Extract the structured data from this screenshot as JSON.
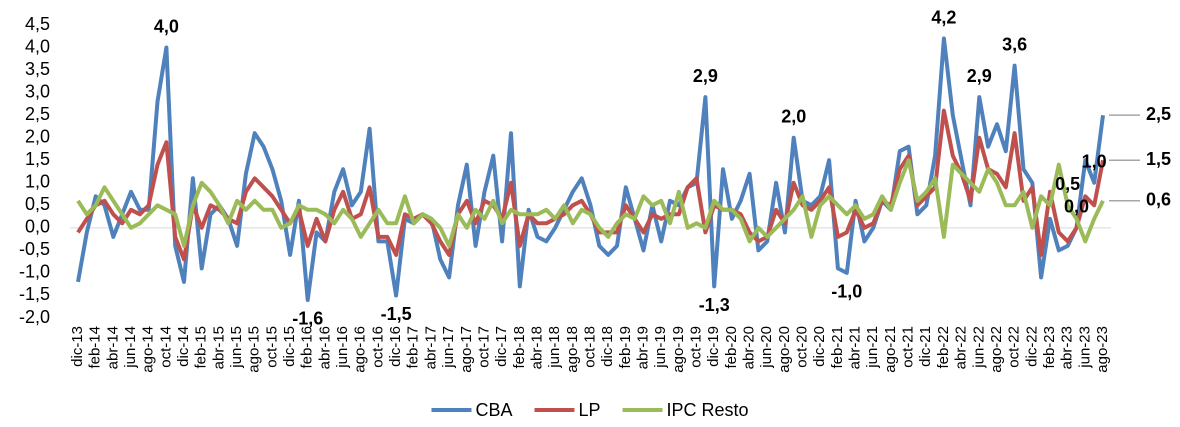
{
  "chart_data": {
    "type": "line",
    "categories": [
      "dic-13",
      null,
      "feb-14",
      null,
      "abr-14",
      null,
      "jun-14",
      null,
      "ago-14",
      null,
      "oct-14",
      null,
      "dic-14",
      null,
      "feb-15",
      null,
      "abr-15",
      null,
      "jun-15",
      null,
      "ago-15",
      null,
      "oct-15",
      null,
      "dic-15",
      null,
      "feb-16",
      null,
      "abr-16",
      null,
      "jun-16",
      null,
      "ago-16",
      null,
      "oct-16",
      null,
      "dic-16",
      null,
      "feb-17",
      null,
      "abr-17",
      null,
      "jun-17",
      null,
      "ago-17",
      null,
      "oct-17",
      null,
      "dic-17",
      null,
      "feb-18",
      null,
      "abr-18",
      null,
      "jun-18",
      null,
      "ago-18",
      null,
      "oct-18",
      null,
      "dic-18",
      null,
      "feb-19",
      null,
      "abr-19",
      null,
      "jun-19",
      null,
      "ago-19",
      null,
      "oct-19",
      null,
      "dic-19",
      null,
      "feb-20",
      null,
      "abr-20",
      null,
      "jun-20",
      null,
      "ago-20",
      null,
      "oct-20",
      null,
      "dic-20",
      null,
      "feb-21",
      null,
      "abr-21",
      null,
      "jun-21",
      null,
      "ago-21",
      null,
      "oct-21",
      null,
      "dic-21",
      null,
      "feb-22",
      null,
      "abr-22",
      null,
      "jun-22",
      null,
      "ago-22",
      null,
      "oct-22",
      null,
      "dic-22",
      null,
      "feb-23",
      null,
      "abr-23",
      null,
      "jun-23",
      null,
      "ago-23"
    ],
    "series": [
      {
        "name": "CBA",
        "color": "#4f81bd",
        "values": [
          -1.2,
          -0.1,
          0.7,
          0.5,
          -0.2,
          0.3,
          0.8,
          0.4,
          0.4,
          2.8,
          4.0,
          -0.4,
          -1.2,
          1.1,
          -0.9,
          0.3,
          0.5,
          0.2,
          -0.4,
          1.2,
          2.1,
          1.8,
          1.3,
          0.6,
          -0.6,
          0.6,
          -1.6,
          -0.1,
          -0.3,
          0.8,
          1.3,
          0.5,
          0.8,
          2.2,
          -0.3,
          -0.3,
          -1.5,
          0.2,
          0.1,
          0.3,
          0.2,
          -0.7,
          -1.1,
          0.5,
          1.4,
          -0.4,
          0.8,
          1.6,
          -0.3,
          2.1,
          -1.3,
          0.4,
          -0.2,
          -0.3,
          0.0,
          0.4,
          0.8,
          1.1,
          0.5,
          -0.4,
          -0.6,
          -0.4,
          0.9,
          0.2,
          -0.5,
          0.5,
          -0.3,
          0.6,
          0.5,
          0.9,
          1.0,
          2.9,
          -1.3,
          1.3,
          0.2,
          0.6,
          1.2,
          -0.5,
          -0.3,
          1.0,
          -0.1,
          2.0,
          0.6,
          0.5,
          0.7,
          1.5,
          -0.9,
          -1.0,
          0.6,
          -0.3,
          0.0,
          0.6,
          0.4,
          1.7,
          1.8,
          0.3,
          0.5,
          1.6,
          4.2,
          2.5,
          1.5,
          0.5,
          2.9,
          1.8,
          2.3,
          1.7,
          3.6,
          1.3,
          1.0,
          -1.1,
          0.2,
          -0.5,
          -0.4,
          0.0,
          1.5,
          1.0,
          2.5
        ],
        "value_labels": [
          null,
          null,
          null,
          null,
          null,
          null,
          null,
          null,
          null,
          null,
          "4,0",
          null,
          null,
          null,
          null,
          null,
          null,
          null,
          null,
          null,
          null,
          null,
          null,
          null,
          null,
          null,
          "-1,6",
          null,
          null,
          null,
          null,
          null,
          null,
          null,
          null,
          null,
          "-1,5",
          null,
          null,
          null,
          null,
          null,
          null,
          null,
          null,
          null,
          null,
          null,
          null,
          null,
          null,
          null,
          null,
          null,
          null,
          null,
          null,
          null,
          null,
          null,
          null,
          null,
          null,
          null,
          null,
          null,
          null,
          null,
          null,
          null,
          null,
          "2,9",
          "-1,3",
          null,
          null,
          null,
          null,
          null,
          null,
          null,
          null,
          "2,0",
          null,
          null,
          null,
          null,
          null,
          "-1,0",
          null,
          null,
          null,
          null,
          null,
          null,
          null,
          null,
          null,
          null,
          "4,2",
          null,
          null,
          null,
          "2,9",
          null,
          null,
          null,
          "3,6",
          null,
          null,
          null,
          null,
          null,
          null,
          null,
          null,
          "1,0",
          "2,5"
        ]
      },
      {
        "name": "LP",
        "color": "#c0504d",
        "values": [
          -0.1,
          0.2,
          0.5,
          0.6,
          0.3,
          0.1,
          0.4,
          0.3,
          0.5,
          1.4,
          1.9,
          -0.2,
          -0.7,
          0.5,
          0.0,
          0.5,
          0.4,
          0.2,
          0.1,
          0.8,
          1.1,
          0.9,
          0.7,
          0.4,
          0.1,
          0.4,
          -0.4,
          0.2,
          -0.3,
          0.4,
          0.8,
          0.2,
          0.3,
          0.9,
          -0.2,
          -0.2,
          -0.6,
          0.3,
          0.2,
          0.3,
          0.1,
          -0.3,
          -0.6,
          0.3,
          0.6,
          0.1,
          0.6,
          0.5,
          0.2,
          1.0,
          -0.4,
          0.3,
          0.1,
          0.1,
          0.2,
          0.3,
          0.5,
          0.6,
          0.3,
          -0.1,
          -0.1,
          -0.1,
          0.5,
          0.2,
          -0.1,
          0.3,
          0.2,
          0.3,
          0.3,
          0.9,
          1.1,
          -0.1,
          0.5,
          0.4,
          0.4,
          0.3,
          -0.1,
          -0.3,
          -0.2,
          0.4,
          0.1,
          1.0,
          0.5,
          0.4,
          0.6,
          0.9,
          -0.2,
          -0.1,
          0.4,
          0.0,
          0.1,
          0.6,
          0.5,
          1.3,
          1.6,
          0.5,
          0.7,
          0.9,
          2.6,
          1.6,
          1.2,
          0.6,
          2.0,
          1.3,
          1.2,
          0.9,
          2.1,
          0.6,
          0.9,
          -0.6,
          0.8,
          -0.1,
          -0.3,
          0.0,
          0.7,
          0.5,
          1.5
        ],
        "value_labels": [
          null,
          null,
          null,
          null,
          null,
          null,
          null,
          null,
          null,
          null,
          null,
          null,
          null,
          null,
          null,
          null,
          null,
          null,
          null,
          null,
          null,
          null,
          null,
          null,
          null,
          null,
          null,
          null,
          null,
          null,
          null,
          null,
          null,
          null,
          null,
          null,
          null,
          null,
          null,
          null,
          null,
          null,
          null,
          null,
          null,
          null,
          null,
          null,
          null,
          null,
          null,
          null,
          null,
          null,
          null,
          null,
          null,
          null,
          null,
          null,
          null,
          null,
          null,
          null,
          null,
          null,
          null,
          null,
          null,
          null,
          null,
          null,
          null,
          null,
          null,
          null,
          null,
          null,
          null,
          null,
          null,
          null,
          null,
          null,
          null,
          null,
          null,
          null,
          null,
          null,
          null,
          null,
          null,
          null,
          null,
          null,
          null,
          null,
          null,
          null,
          null,
          null,
          null,
          null,
          null,
          null,
          null,
          null,
          null,
          null,
          null,
          null,
          null,
          "0,0",
          null,
          null,
          "1,5"
        ]
      },
      {
        "name": "IPC Resto",
        "color": "#9bbb59",
        "values": [
          0.6,
          0.3,
          0.5,
          0.9,
          0.6,
          0.3,
          0.0,
          0.1,
          0.3,
          0.5,
          0.4,
          0.3,
          -0.4,
          0.5,
          1.0,
          0.8,
          0.5,
          0.1,
          0.6,
          0.4,
          0.6,
          0.4,
          0.4,
          0.0,
          0.1,
          0.5,
          0.4,
          0.4,
          0.3,
          0.1,
          0.4,
          0.2,
          -0.2,
          0.1,
          0.4,
          0.1,
          0.1,
          0.7,
          0.1,
          0.3,
          0.2,
          0.0,
          -0.4,
          0.3,
          0.0,
          0.4,
          0.2,
          0.6,
          0.1,
          0.4,
          0.3,
          0.3,
          0.3,
          0.4,
          0.2,
          0.5,
          0.1,
          0.4,
          0.3,
          0.0,
          -0.2,
          0.1,
          0.3,
          0.2,
          0.7,
          0.5,
          0.6,
          0.1,
          0.8,
          0.0,
          0.1,
          0.0,
          0.6,
          0.4,
          0.4,
          0.2,
          -0.3,
          0.0,
          -0.2,
          0.0,
          0.2,
          0.4,
          0.7,
          -0.2,
          0.5,
          0.7,
          0.5,
          0.3,
          0.5,
          0.2,
          0.3,
          0.7,
          0.4,
          1.0,
          1.5,
          0.6,
          0.8,
          1.1,
          -0.2,
          1.4,
          1.2,
          1.0,
          0.8,
          1.3,
          1.0,
          0.5,
          0.5,
          0.8,
          0.0,
          0.7,
          0.5,
          1.4,
          0.5,
          0.2,
          -0.3,
          0.2,
          0.6
        ],
        "value_labels": [
          null,
          null,
          null,
          null,
          null,
          null,
          null,
          null,
          null,
          null,
          null,
          null,
          null,
          null,
          null,
          null,
          null,
          null,
          null,
          null,
          null,
          null,
          null,
          null,
          null,
          null,
          null,
          null,
          null,
          null,
          null,
          null,
          null,
          null,
          null,
          null,
          null,
          null,
          null,
          null,
          null,
          null,
          null,
          null,
          null,
          null,
          null,
          null,
          null,
          null,
          null,
          null,
          null,
          null,
          null,
          null,
          null,
          null,
          null,
          null,
          null,
          null,
          null,
          null,
          null,
          null,
          null,
          null,
          null,
          null,
          null,
          null,
          null,
          null,
          null,
          null,
          null,
          null,
          null,
          null,
          null,
          null,
          null,
          null,
          null,
          null,
          null,
          null,
          null,
          null,
          null,
          null,
          null,
          null,
          null,
          null,
          null,
          null,
          null,
          null,
          null,
          null,
          null,
          null,
          null,
          null,
          null,
          null,
          null,
          null,
          null,
          null,
          "0,5",
          null,
          null,
          null,
          "0,6"
        ]
      }
    ],
    "ylim": [
      -2.0,
      4.5
    ],
    "yticks": [
      {
        "value": -2.0,
        "label": "-2,0"
      },
      {
        "value": -1.5,
        "label": "-1,5"
      },
      {
        "value": -1.0,
        "label": "-1,0"
      },
      {
        "value": -0.5,
        "label": "-0,5"
      },
      {
        "value": 0.0,
        "label": "0,0"
      },
      {
        "value": 0.5,
        "label": "0,5"
      },
      {
        "value": 1.0,
        "label": "1,0"
      },
      {
        "value": 1.5,
        "label": "1,5"
      },
      {
        "value": 2.0,
        "label": "2,0"
      },
      {
        "value": 2.5,
        "label": "2,5"
      },
      {
        "value": 3.0,
        "label": "3,0"
      },
      {
        "value": 3.5,
        "label": "3,5"
      },
      {
        "value": 4.0,
        "label": "4,0"
      },
      {
        "value": 4.5,
        "label": "4,5"
      }
    ],
    "grid": false,
    "legend": "bottom"
  }
}
